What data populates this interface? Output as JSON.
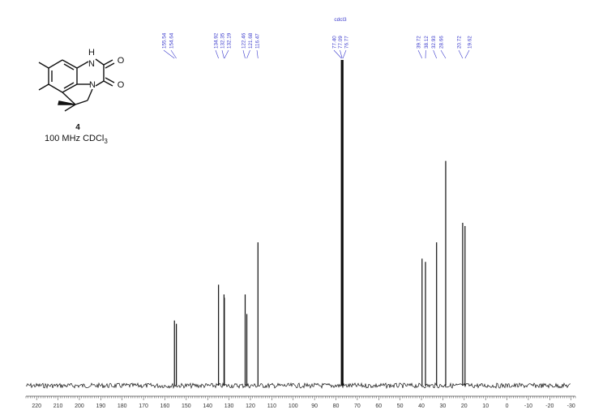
{
  "compound": {
    "number": "4",
    "caption_prefix": "100 MHz CDCl",
    "caption_subscript": "3"
  },
  "structure": {
    "atom_labels": [
      "H",
      "N",
      "O",
      "N",
      "O"
    ]
  },
  "chart_data": {
    "type": "line",
    "title": "",
    "xlabel": "",
    "ylabel": "",
    "x_axis": {
      "range": [
        225,
        -32
      ],
      "reversed": true,
      "tick_labels": [
        "220",
        "210",
        "200",
        "190",
        "180",
        "170",
        "160",
        "150",
        "140",
        "130",
        "120",
        "110",
        "100",
        "90",
        "80",
        "70",
        "60",
        "50",
        "40",
        "30",
        "20",
        "10",
        "0",
        "-10",
        "-20",
        "-30"
      ]
    },
    "solvent_label": "cdcl3",
    "peak_labels": [
      {
        "group": "g1",
        "values": [
          "155.54",
          "154.64"
        ]
      },
      {
        "group": "g2",
        "values": [
          "134.92",
          "132.35",
          "132.19"
        ]
      },
      {
        "group": "g3",
        "values": [
          "122.46",
          "121.68",
          "116.47"
        ]
      },
      {
        "group": "g4",
        "values": [
          "77.40",
          "77.09",
          "76.77"
        ]
      },
      {
        "group": "g5",
        "values": [
          "39.72",
          "38.12",
          "32.93",
          "28.66"
        ]
      },
      {
        "group": "g6",
        "values": [
          "20.72",
          "19.62"
        ]
      }
    ],
    "peaks": [
      {
        "ppm": 155.54,
        "height": 0.2
      },
      {
        "ppm": 154.64,
        "height": 0.19
      },
      {
        "ppm": 134.92,
        "height": 0.31
      },
      {
        "ppm": 132.35,
        "height": 0.28
      },
      {
        "ppm": 132.19,
        "height": 0.27
      },
      {
        "ppm": 122.46,
        "height": 0.28
      },
      {
        "ppm": 121.68,
        "height": 0.22
      },
      {
        "ppm": 116.47,
        "height": 0.44
      },
      {
        "ppm": 77.4,
        "height": 1.0
      },
      {
        "ppm": 77.09,
        "height": 1.0
      },
      {
        "ppm": 76.77,
        "height": 1.0
      },
      {
        "ppm": 39.72,
        "height": 0.39
      },
      {
        "ppm": 38.12,
        "height": 0.38
      },
      {
        "ppm": 32.93,
        "height": 0.44
      },
      {
        "ppm": 28.66,
        "height": 0.69
      },
      {
        "ppm": 20.72,
        "height": 0.5
      },
      {
        "ppm": 19.62,
        "height": 0.49
      }
    ],
    "colors": {
      "trace": "#111111",
      "labels": "#3a3acc"
    }
  }
}
